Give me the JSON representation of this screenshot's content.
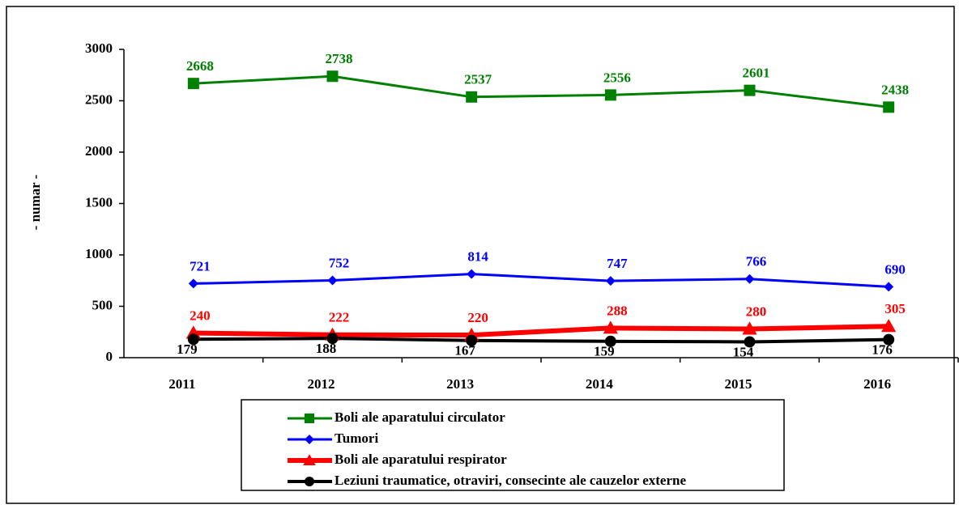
{
  "chart_data": {
    "type": "line",
    "ylabel": "- numar -",
    "categories": [
      "2011",
      "2012",
      "2013",
      "2014",
      "2015",
      "2016"
    ],
    "series": [
      {
        "name": "Boli ale aparatului circulator",
        "color": "#008000",
        "marker": "square",
        "values": [
          2668,
          2738,
          2537,
          2556,
          2601,
          2438
        ]
      },
      {
        "name": "Tumori",
        "color": "#0000ff",
        "marker": "diamond",
        "values": [
          721,
          752,
          814,
          747,
          766,
          690
        ]
      },
      {
        "name": "Boli ale aparatului respirator",
        "color": "#ff0000",
        "marker": "triangle",
        "values": [
          240,
          222,
          220,
          288,
          280,
          305
        ]
      },
      {
        "name": "Leziuni traumatice, otraviri, consecinte ale cauzelor externe",
        "color": "#000000",
        "marker": "circle",
        "values": [
          179,
          188,
          167,
          159,
          154,
          176
        ]
      }
    ],
    "ylim": [
      0,
      3000
    ],
    "yticks": [
      0,
      500,
      1000,
      1500,
      2000,
      2500,
      3000
    ],
    "legend": "bottom"
  }
}
